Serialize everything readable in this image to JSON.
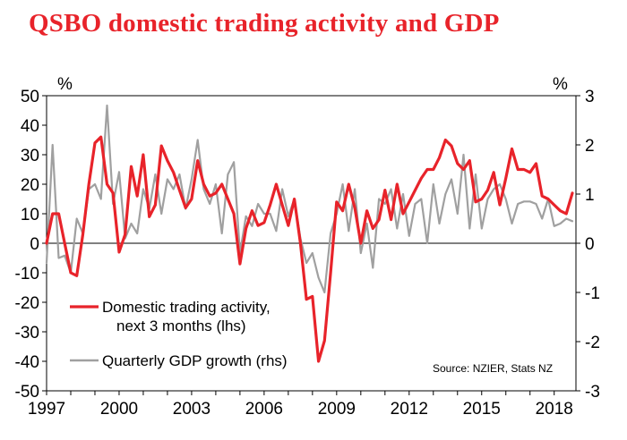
{
  "chart_data": {
    "type": "line",
    "title": "QSBO domestic trading activity and GDP",
    "left_axis": {
      "unit": "%",
      "ylim": [
        -50,
        50
      ],
      "ticks": [
        50,
        40,
        30,
        20,
        10,
        0,
        -10,
        -20,
        -30,
        -40,
        -50
      ]
    },
    "right_axis": {
      "unit": "%",
      "ylim": [
        -3,
        3
      ],
      "ticks": [
        3,
        2,
        1,
        0,
        -1,
        -2,
        -3
      ]
    },
    "x_ticks": [
      1997,
      2000,
      2003,
      2006,
      2009,
      2012,
      2015,
      2018
    ],
    "x_range": [
      1997,
      2018.9
    ],
    "source": "Source: NZIER, Stats NZ",
    "series": [
      {
        "name": "Domestic trading activity, next 3 months (lhs)",
        "legend_lines": [
          "Domestic trading activity,",
          "next 3 months (lhs)"
        ],
        "axis": "left",
        "color": "#e8232a",
        "x": [
          1997.0,
          1997.25,
          1997.5,
          1997.75,
          1998.0,
          1998.25,
          1998.5,
          1998.75,
          1999.0,
          1999.25,
          1999.5,
          1999.75,
          2000.0,
          2000.25,
          2000.5,
          2000.75,
          2001.0,
          2001.25,
          2001.5,
          2001.75,
          2002.0,
          2002.25,
          2002.5,
          2002.75,
          2003.0,
          2003.25,
          2003.5,
          2003.75,
          2004.0,
          2004.25,
          2004.5,
          2004.75,
          2005.0,
          2005.25,
          2005.5,
          2005.75,
          2006.0,
          2006.25,
          2006.5,
          2006.75,
          2007.0,
          2007.25,
          2007.5,
          2007.75,
          2008.0,
          2008.25,
          2008.5,
          2008.75,
          2009.0,
          2009.25,
          2009.5,
          2009.75,
          2010.0,
          2010.25,
          2010.5,
          2010.75,
          2011.0,
          2011.25,
          2011.5,
          2011.75,
          2012.0,
          2012.25,
          2012.5,
          2012.75,
          2013.0,
          2013.25,
          2013.5,
          2013.75,
          2014.0,
          2014.25,
          2014.5,
          2014.75,
          2015.0,
          2015.25,
          2015.5,
          2015.75,
          2016.0,
          2016.25,
          2016.5,
          2016.75,
          2017.0,
          2017.25,
          2017.5,
          2017.75,
          2018.0,
          2018.25,
          2018.5,
          2018.75
        ],
        "values": [
          0,
          10,
          10,
          0,
          -10,
          -11,
          3,
          20,
          34,
          36,
          20,
          17,
          -3,
          3,
          26,
          16,
          30,
          9,
          13,
          33,
          28,
          24,
          18,
          12,
          15,
          28,
          20,
          16,
          17,
          20,
          15,
          10,
          -7,
          5,
          11,
          6,
          7,
          13,
          20,
          13,
          6,
          15,
          0,
          -19,
          -18,
          -40,
          -33,
          -10,
          14,
          11,
          20,
          12,
          0,
          11,
          5,
          8,
          18,
          8,
          20,
          10,
          14,
          18,
          22,
          25,
          25,
          29,
          35,
          33,
          27,
          25,
          28,
          14,
          15,
          18,
          24,
          13,
          22,
          32,
          25,
          25,
          24,
          27,
          16,
          15,
          13,
          11,
          10,
          17
        ]
      },
      {
        "name": "Quarterly GDP growth (rhs)",
        "legend_lines": [
          "Quarterly GDP growth (rhs)"
        ],
        "axis": "right",
        "color": "#a0a0a0",
        "x": [
          1997.0,
          1997.25,
          1997.5,
          1997.75,
          1998.0,
          1998.25,
          1998.5,
          1998.75,
          1999.0,
          1999.25,
          1999.5,
          1999.75,
          2000.0,
          2000.25,
          2000.5,
          2000.75,
          2001.0,
          2001.25,
          2001.5,
          2001.75,
          2002.0,
          2002.25,
          2002.5,
          2002.75,
          2003.0,
          2003.25,
          2003.5,
          2003.75,
          2004.0,
          2004.25,
          2004.5,
          2004.75,
          2005.0,
          2005.25,
          2005.5,
          2005.75,
          2006.0,
          2006.25,
          2006.5,
          2006.75,
          2007.0,
          2007.25,
          2007.5,
          2007.75,
          2008.0,
          2008.25,
          2008.5,
          2008.75,
          2009.0,
          2009.25,
          2009.5,
          2009.75,
          2010.0,
          2010.25,
          2010.5,
          2010.75,
          2011.0,
          2011.25,
          2011.5,
          2011.75,
          2012.0,
          2012.25,
          2012.5,
          2012.75,
          2013.0,
          2013.25,
          2013.5,
          2013.75,
          2014.0,
          2014.25,
          2014.5,
          2014.75,
          2015.0,
          2015.25,
          2015.5,
          2015.75,
          2016.0,
          2016.25,
          2016.5,
          2016.75,
          2017.0,
          2017.25,
          2017.5,
          2017.75,
          2018.0,
          2018.25,
          2018.5,
          2018.75
        ],
        "values": [
          -0.4,
          2.0,
          -0.3,
          -0.25,
          -0.6,
          0.5,
          0.2,
          1.1,
          1.2,
          0.9,
          2.8,
          0.8,
          1.45,
          0.1,
          0.4,
          0.2,
          1.1,
          0.7,
          1.4,
          0.6,
          1.3,
          1.1,
          1.4,
          0.7,
          1.3,
          2.1,
          1.1,
          0.8,
          1.2,
          0.2,
          1.4,
          1.65,
          -0.2,
          0.55,
          0.35,
          0.8,
          0.6,
          0.6,
          0.25,
          1.1,
          0.55,
          0.9,
          0.1,
          -0.4,
          -0.2,
          -0.7,
          -1.0,
          0.2,
          0.6,
          1.2,
          0.25,
          1.1,
          -0.2,
          0.4,
          -0.5,
          0.9,
          0.8,
          1.1,
          0.3,
          1.0,
          0.15,
          0.8,
          0.9,
          0.0,
          1.2,
          0.4,
          1.0,
          1.3,
          0.6,
          1.8,
          0.3,
          1.4,
          0.3,
          0.9,
          1.1,
          1.2,
          0.9,
          0.4,
          0.8,
          0.85,
          0.85,
          0.8,
          0.5,
          0.9,
          0.35,
          0.4,
          0.5,
          0.45
        ]
      }
    ]
  }
}
